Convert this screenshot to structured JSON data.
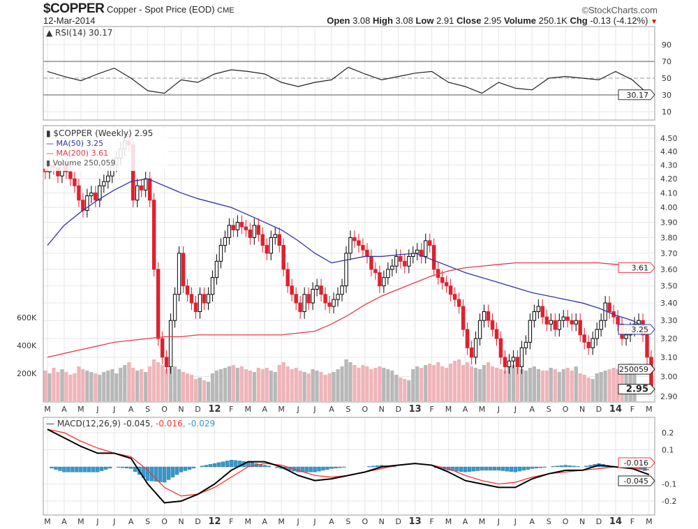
{
  "header": {
    "symbol": "$COPPER",
    "name": "Copper - Spot Price (EOD)",
    "exchange": "CME",
    "brand": "©StockCharts.com",
    "date": "12-Mar-2014",
    "open_label": "Open",
    "open": "3.08",
    "high_label": "High",
    "high": "3.08",
    "low_label": "Low",
    "low": "2.91",
    "close_label": "Close",
    "close": "2.95",
    "volume_label": "Volume",
    "volume": "250.1K",
    "chg_label": "Chg",
    "chg": "-0.13 (-4.12%)",
    "chg_arrow": "▼"
  },
  "colors": {
    "up": "#000000",
    "down": "#e0202e",
    "ma50": "#3333aa",
    "ma200": "#e03a4a",
    "vol_up": "#b8b8b8",
    "vol_down": "#f0b4b8",
    "macd": "#000000",
    "signal": "#ff3030",
    "hist": "#3399cc"
  },
  "chart_data": [
    {
      "type": "line",
      "title": "RSI(14) 30.17",
      "yticks": [
        90,
        70,
        50,
        30,
        10
      ],
      "ylim": [
        0,
        100
      ],
      "last_label": "30.17",
      "values_monthly": [
        58,
        52,
        47,
        55,
        62,
        50,
        35,
        32,
        48,
        45,
        55,
        60,
        58,
        55,
        45,
        40,
        45,
        48,
        63,
        55,
        48,
        52,
        56,
        58,
        45,
        40,
        32,
        45,
        38,
        36,
        50,
        52,
        50,
        48,
        58,
        48,
        30
      ]
    },
    {
      "type": "candlestick",
      "title": "$COPPER (Weekly) 2.95",
      "legend": [
        "MA(50) 3.25",
        "MA(200) 3.61",
        "Volume 250,059"
      ],
      "yticks": [
        "4.50",
        "4.40",
        "4.30",
        "4.20",
        "4.10",
        "4.00",
        "3.90",
        "3.80",
        "3.70",
        "3.60",
        "3.50",
        "3.40",
        "3.30",
        "3.20",
        "3.10",
        "3.00",
        "2.90"
      ],
      "ylim": [
        2.9,
        4.5
      ],
      "scale": "log",
      "vol_ticks": [
        "600K",
        "400K",
        "200K"
      ],
      "price_tags": {
        "ma200": "3.61",
        "ma50": "3.25",
        "volume": "250059",
        "close": "2.95"
      },
      "weekly_close": [
        4.25,
        4.3,
        4.28,
        4.22,
        4.3,
        4.25,
        4.2,
        4.15,
        4.05,
        3.98,
        4.08,
        4.1,
        4.05,
        4.15,
        4.18,
        4.22,
        4.3,
        4.35,
        4.42,
        4.48,
        4.45,
        4.05,
        4.15,
        4.12,
        4.2,
        4.05,
        3.6,
        3.2,
        3.1,
        3.05,
        3.3,
        3.45,
        3.7,
        3.5,
        3.45,
        3.4,
        3.35,
        3.45,
        3.4,
        3.45,
        3.55,
        3.65,
        3.75,
        3.8,
        3.88,
        3.85,
        3.9,
        3.87,
        3.85,
        3.8,
        3.88,
        3.82,
        3.75,
        3.7,
        3.8,
        3.82,
        3.75,
        3.6,
        3.5,
        3.45,
        3.4,
        3.35,
        3.45,
        3.4,
        3.48,
        3.5,
        3.45,
        3.4,
        3.38,
        3.42,
        3.45,
        3.5,
        3.7,
        3.8,
        3.78,
        3.75,
        3.72,
        3.68,
        3.6,
        3.58,
        3.5,
        3.55,
        3.6,
        3.62,
        3.68,
        3.65,
        3.62,
        3.68,
        3.7,
        3.72,
        3.68,
        3.78,
        3.75,
        3.6,
        3.55,
        3.52,
        3.5,
        3.45,
        3.42,
        3.38,
        3.25,
        3.15,
        3.1,
        3.2,
        3.3,
        3.35,
        3.3,
        3.25,
        3.2,
        3.1,
        3.05,
        3.08,
        3.1,
        3.05,
        3.15,
        3.18,
        3.3,
        3.35,
        3.38,
        3.32,
        3.28,
        3.3,
        3.25,
        3.3,
        3.32,
        3.3,
        3.28,
        3.3,
        3.22,
        3.18,
        3.15,
        3.2,
        3.25,
        3.3,
        3.4,
        3.35,
        3.32,
        3.28,
        3.2,
        3.22,
        3.25,
        3.28,
        3.3,
        3.22,
        3.1,
        2.95
      ],
      "weekly_volume_k": [
        220,
        200,
        240,
        210,
        230,
        210,
        190,
        200,
        250,
        230,
        220,
        210,
        200,
        190,
        210,
        220,
        230,
        200,
        240,
        260,
        280,
        240,
        220,
        230,
        210,
        250,
        300,
        280,
        260,
        230,
        240,
        250,
        230,
        210,
        200,
        190,
        160,
        170,
        150,
        140,
        200,
        220,
        230,
        240,
        250,
        260,
        240,
        250,
        230,
        220,
        210,
        240,
        230,
        240,
        220,
        210,
        260,
        280,
        250,
        230,
        240,
        220,
        210,
        200,
        230,
        220,
        210,
        190,
        200,
        210,
        230,
        250,
        300,
        280,
        260,
        240,
        260,
        250,
        230,
        240,
        250,
        240,
        230,
        220,
        190,
        170,
        160,
        150,
        230,
        250,
        240,
        260,
        270,
        260,
        280,
        250,
        240,
        270,
        290,
        300,
        260,
        280,
        250,
        240,
        230,
        260,
        280,
        250,
        240,
        230,
        220,
        250,
        260,
        240,
        230,
        220,
        240,
        250,
        230,
        220,
        220,
        240,
        230,
        210,
        230,
        240,
        220,
        250,
        200,
        190,
        170,
        160,
        200,
        210,
        220,
        230,
        240,
        230,
        250,
        260,
        270,
        250
      ],
      "ma50_monthly": [
        3.75,
        3.88,
        3.97,
        4.05,
        4.12,
        4.18,
        4.2,
        4.15,
        4.1,
        4.06,
        4.03,
        4.0,
        3.95,
        3.9,
        3.85,
        3.78,
        3.7,
        3.64,
        3.66,
        3.68,
        3.68,
        3.69,
        3.7,
        3.66,
        3.62,
        3.58,
        3.55,
        3.52,
        3.49,
        3.46,
        3.44,
        3.42,
        3.4,
        3.37,
        3.33,
        3.3,
        3.25
      ],
      "ma200_monthly": [
        3.1,
        3.12,
        3.14,
        3.16,
        3.18,
        3.19,
        3.2,
        3.21,
        3.21,
        3.22,
        3.22,
        3.22,
        3.22,
        3.22,
        3.22,
        3.23,
        3.24,
        3.28,
        3.33,
        3.39,
        3.44,
        3.48,
        3.52,
        3.56,
        3.59,
        3.61,
        3.62,
        3.63,
        3.64,
        3.64,
        3.64,
        3.64,
        3.64,
        3.64,
        3.63,
        3.62,
        3.61
      ]
    },
    {
      "type": "line",
      "title": "MACD(12,26,9)",
      "legend": [
        "-0.045",
        "-0.016",
        "-0.029"
      ],
      "yticks": [
        "0.2",
        "0.1",
        "-0.1",
        "-0.2"
      ],
      "ylim": [
        -0.25,
        0.25
      ],
      "tags": {
        "signal": "-0.016",
        "macd": "-0.045"
      },
      "macd_monthly": [
        0.22,
        0.17,
        0.12,
        0.08,
        0.08,
        0.05,
        -0.1,
        -0.21,
        -0.2,
        -0.16,
        -0.1,
        -0.02,
        0.03,
        0.03,
        0.0,
        -0.05,
        -0.08,
        -0.07,
        -0.05,
        -0.03,
        0.0,
        0.01,
        0.02,
        0.01,
        -0.03,
        -0.08,
        -0.1,
        -0.12,
        -0.12,
        -0.07,
        -0.04,
        -0.02,
        -0.02,
        0.01,
        0.0,
        -0.01,
        -0.045
      ],
      "signal_monthly": [
        0.22,
        0.2,
        0.15,
        0.11,
        0.08,
        0.06,
        -0.02,
        -0.12,
        -0.17,
        -0.16,
        -0.12,
        -0.06,
        0.0,
        0.02,
        0.01,
        -0.02,
        -0.05,
        -0.06,
        -0.05,
        -0.03,
        -0.01,
        0.01,
        0.02,
        0.01,
        -0.01,
        -0.05,
        -0.08,
        -0.1,
        -0.09,
        -0.06,
        -0.04,
        -0.03,
        -0.02,
        -0.01,
        0.0,
        -0.01,
        -0.016
      ]
    }
  ],
  "x_axis_labels": [
    "M",
    "A",
    "M",
    "J",
    "J",
    "A",
    "S",
    "O",
    "N",
    "D",
    "12",
    "F",
    "M",
    "A",
    "M",
    "J",
    "J",
    "A",
    "S",
    "O",
    "N",
    "D",
    "13",
    "F",
    "M",
    "A",
    "M",
    "J",
    "J",
    "A",
    "S",
    "O",
    "N",
    "D",
    "14",
    "F",
    "M"
  ]
}
